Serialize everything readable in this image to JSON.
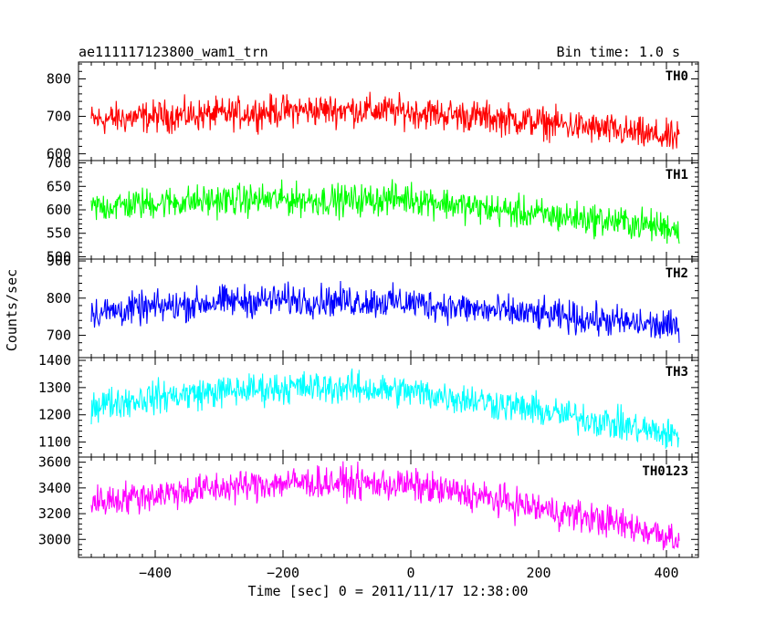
{
  "header": {
    "title": "ae111117123800_wam1_trn",
    "bin_time": "Bin time: 1.0 s"
  },
  "axes": {
    "xlabel": "Time [sec] 0 = 2011/11/17 12:38:00",
    "ylabel": "Counts/sec"
  },
  "chart_data": {
    "type": "line",
    "title": "ae111117123800_wam1_trn",
    "subtitle": "Bin time: 1.0 s",
    "xlabel": "Time [sec] 0 = 2011/11/17 12:38:00",
    "ylabel": "Counts/sec",
    "xlim": [
      -520,
      450
    ],
    "x_ticks": [
      -400,
      -200,
      0,
      200,
      400
    ],
    "grid": false,
    "panels": [
      {
        "name": "TH0",
        "color": "#ff0000",
        "ylim": [
          582,
          845
        ],
        "y_ticks": [
          600,
          700,
          800
        ],
        "x": [
          -500,
          -400,
          -300,
          -200,
          -100,
          0,
          100,
          200,
          300,
          420
        ],
        "values": [
          690,
          700,
          705,
          715,
          718,
          712,
          700,
          685,
          665,
          640
        ]
      },
      {
        "name": "TH1",
        "color": "#00ff00",
        "ylim": [
          495,
          705
        ],
        "y_ticks": [
          500,
          550,
          600,
          650,
          700
        ],
        "x": [
          -500,
          -400,
          -300,
          -200,
          -100,
          0,
          100,
          200,
          300,
          420
        ],
        "values": [
          605,
          615,
          620,
          622,
          620,
          625,
          605,
          590,
          578,
          560
        ]
      },
      {
        "name": "TH2",
        "color": "#0000ff",
        "ylim": [
          640,
          905
        ],
        "y_ticks": [
          700,
          800,
          900
        ],
        "x": [
          -500,
          -400,
          -300,
          -200,
          -100,
          0,
          100,
          200,
          300,
          420
        ],
        "values": [
          760,
          775,
          790,
          795,
          792,
          788,
          770,
          755,
          740,
          720
        ]
      },
      {
        "name": "TH3",
        "color": "#00ffff",
        "ylim": [
          1045,
          1410
        ],
        "y_ticks": [
          1100,
          1200,
          1300,
          1400
        ],
        "x": [
          -500,
          -400,
          -300,
          -200,
          -100,
          0,
          100,
          200,
          300,
          420
        ],
        "values": [
          1235,
          1265,
          1285,
          1300,
          1300,
          1285,
          1255,
          1215,
          1175,
          1120
        ]
      },
      {
        "name": "TH0123",
        "color": "#ff00ff",
        "ylim": [
          2860,
          3640
        ],
        "y_ticks": [
          3000,
          3200,
          3400,
          3600
        ],
        "x": [
          -500,
          -400,
          -300,
          -200,
          -100,
          0,
          100,
          200,
          300,
          420
        ],
        "values": [
          3290,
          3350,
          3400,
          3440,
          3440,
          3420,
          3340,
          3240,
          3150,
          3010
        ]
      }
    ]
  }
}
